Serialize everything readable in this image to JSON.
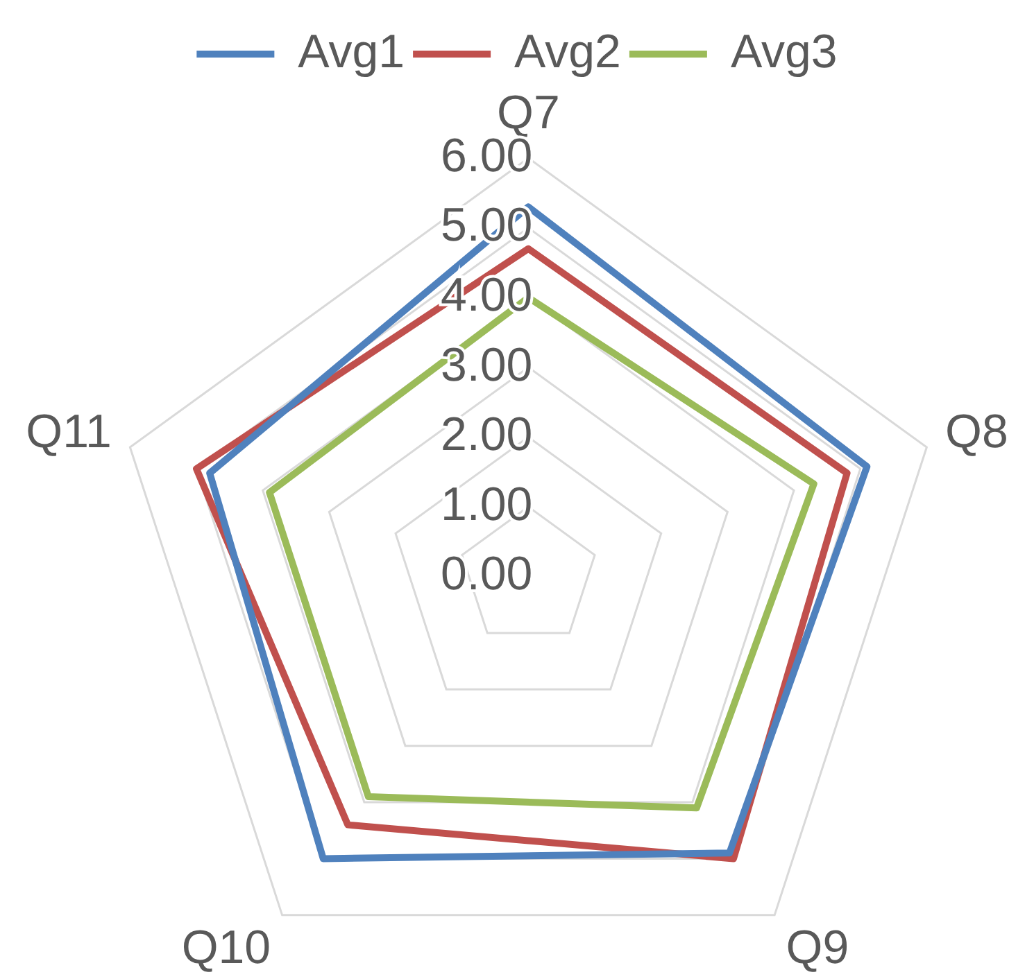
{
  "chart_data": {
    "type": "radar",
    "categories": [
      "Q7",
      "Q8",
      "Q9",
      "Q10",
      "Q11"
    ],
    "series": [
      {
        "name": "Avg1",
        "color": "#4f81bd",
        "values": [
          5.3,
          5.1,
          4.9,
          5.0,
          4.8
        ]
      },
      {
        "name": "Avg2",
        "color": "#c0504d",
        "values": [
          4.7,
          4.8,
          5.0,
          4.4,
          5.0
        ]
      },
      {
        "name": "Avg3",
        "color": "#9bbb59",
        "values": [
          4.0,
          4.3,
          4.1,
          3.9,
          3.9
        ]
      }
    ],
    "ylim": [
      0,
      6
    ],
    "yticks": [
      {
        "value": 0,
        "label": "0.00"
      },
      {
        "value": 1,
        "label": "1.00"
      },
      {
        "value": 2,
        "label": "2.00"
      },
      {
        "value": 3,
        "label": "3.00"
      },
      {
        "value": 4,
        "label": "4.00"
      },
      {
        "value": 5,
        "label": "5.00"
      },
      {
        "value": 6,
        "label": "6.00"
      }
    ],
    "grid": true,
    "legend": "top"
  }
}
